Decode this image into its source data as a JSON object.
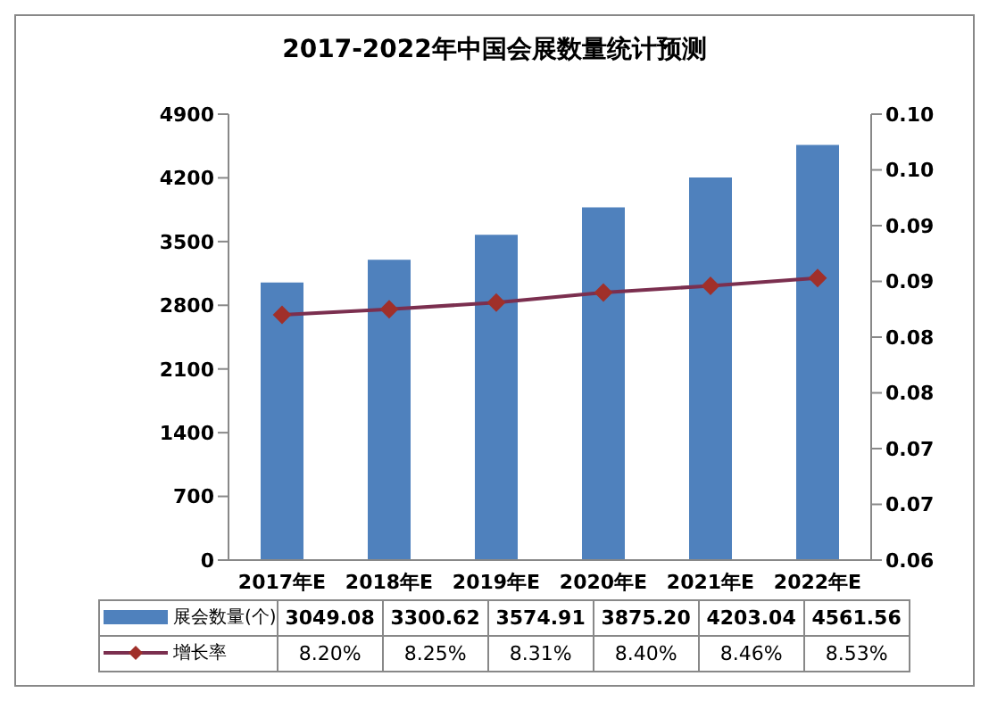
{
  "chart_data": {
    "type": "bar",
    "title": "2017-2022年中国会展数量统计预测",
    "categories": [
      "2017年E",
      "2018年E",
      "2019年E",
      "2020年E",
      "2021年E",
      "2022年E"
    ],
    "series": [
      {
        "name": "展会数量(个)",
        "color": "#4f81bd",
        "values": [
          3049.08,
          3300.62,
          3574.91,
          3875.2,
          4203.04,
          4561.56
        ],
        "value_labels": [
          "3049.08",
          "3300.62",
          "3574.91",
          "3875.20",
          "4203.04",
          "4561.56"
        ]
      },
      {
        "name": "增长率",
        "type": "line",
        "axis": "y2",
        "color": "#7b2f4f",
        "values": [
          0.082,
          0.0825,
          0.0831,
          0.084,
          0.0846,
          0.0853
        ],
        "value_labels": [
          "8.20%",
          "8.25%",
          "8.31%",
          "8.40%",
          "8.46%",
          "8.53%"
        ]
      }
    ],
    "ylim": [
      0,
      4900
    ],
    "yticks": [
      0,
      700,
      1400,
      2100,
      2800,
      3500,
      4200,
      4900
    ],
    "y2lim": [
      0.06,
      0.1
    ],
    "y2ticks": [
      0.06,
      {
        "value": 0.065,
        "label": "0.07"
      },
      0.07,
      {
        "value": 0.075,
        "label": "0.08"
      },
      0.08,
      {
        "value": 0.085,
        "label": "0.09"
      },
      0.09,
      {
        "value": 0.095,
        "label": "0.10"
      },
      {
        "value": 0.1,
        "label": "0.10"
      }
    ],
    "marker": "diamond",
    "legend": "bottom"
  }
}
